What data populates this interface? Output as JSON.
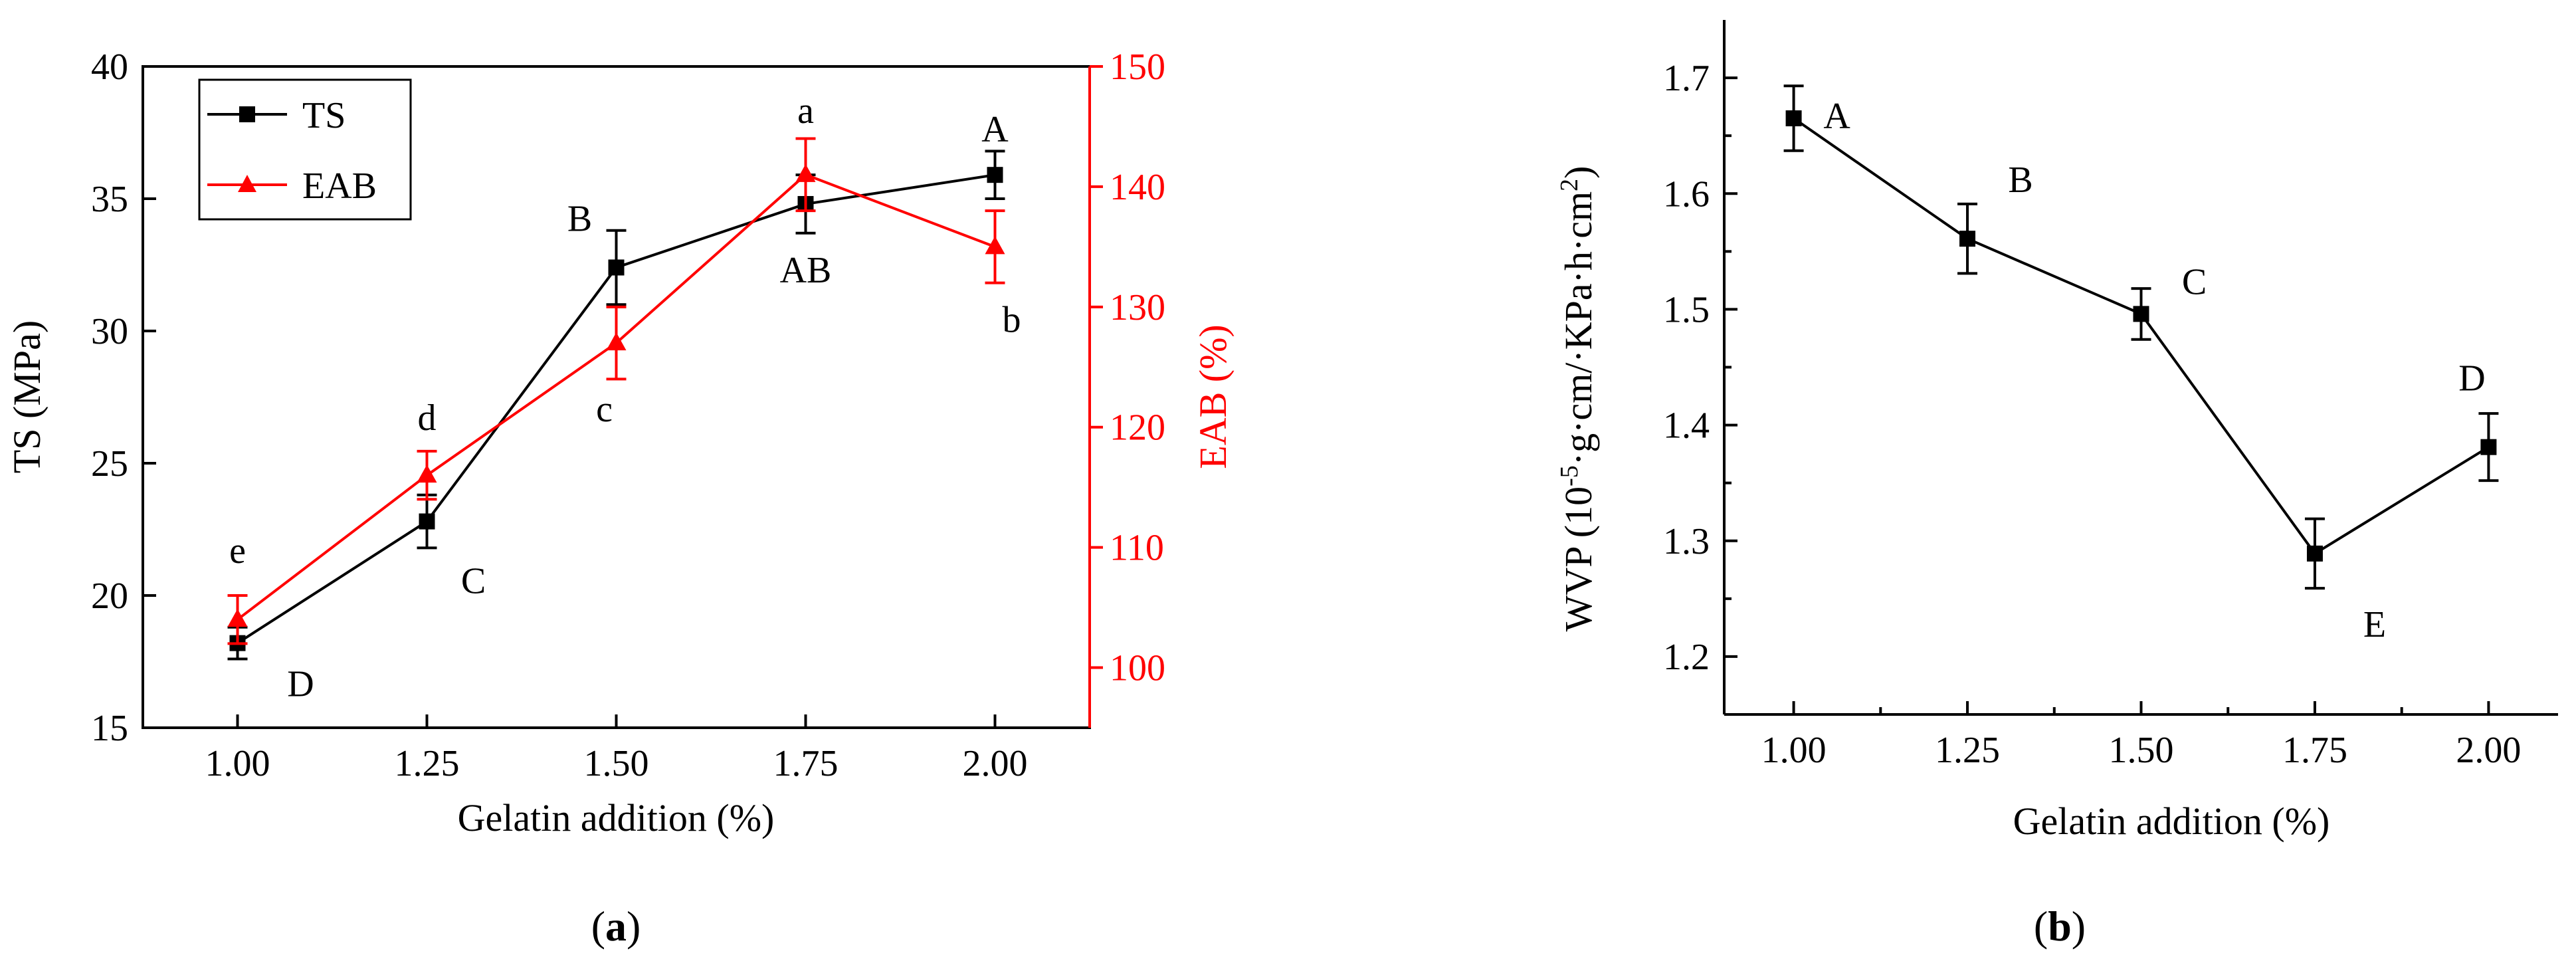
{
  "colors": {
    "ts": "#000000",
    "eab": "#ff0000"
  },
  "chart_data": [
    {
      "id": "a",
      "type": "line",
      "panel_label": "(a)",
      "xlabel": "Gelatin addition (%)",
      "ylabel": "TS (MPa)",
      "ylabel_right": "EAB (%)",
      "x": [
        1.0,
        1.25,
        1.5,
        1.75,
        2.0
      ],
      "x_tick_labels": [
        "1.00",
        "1.25",
        "1.50",
        "1.75",
        "2.00"
      ],
      "xlim": [
        0.875,
        2.125
      ],
      "ylim": [
        15,
        40
      ],
      "ylim_right": [
        95,
        150
      ],
      "y_ticks": [
        15,
        20,
        25,
        30,
        35,
        40
      ],
      "y_ticks_right": [
        100,
        110,
        120,
        130,
        140,
        150
      ],
      "legend": {
        "position": "top-left",
        "entries": [
          "TS",
          "EAB"
        ]
      },
      "series": [
        {
          "name": "TS",
          "axis": "left",
          "marker": "square",
          "color": "#000000",
          "values": [
            18.2,
            22.8,
            32.4,
            34.8,
            35.9
          ],
          "errors": [
            0.6,
            1.0,
            1.4,
            1.1,
            0.9
          ],
          "letters": [
            "D",
            "C",
            "B",
            "AB",
            "A"
          ]
        },
        {
          "name": "EAB",
          "axis": "right",
          "marker": "triangle",
          "color": "#ff0000",
          "values": [
            104,
            116,
            127,
            141,
            135
          ],
          "errors": [
            2,
            2,
            3,
            3,
            3
          ],
          "letters": [
            "e",
            "d",
            "c",
            "a",
            "b"
          ]
        }
      ]
    },
    {
      "id": "b",
      "type": "line",
      "panel_label": "(b)",
      "xlabel": "Gelatin addition (%)",
      "ylabel": "WVP (10⁻⁵·g·cm/·KPa·h·cm²)",
      "x": [
        1.0,
        1.25,
        1.5,
        1.75,
        2.0
      ],
      "x_tick_labels": [
        "1.00",
        "1.25",
        "1.50",
        "1.75",
        "2.00"
      ],
      "xlim": [
        0.9,
        2.1
      ],
      "ylim": [
        1.15,
        1.75
      ],
      "y_ticks": [
        1.2,
        1.3,
        1.4,
        1.5,
        1.6,
        1.7
      ],
      "y_tick_labels": [
        "1.2",
        "1.3",
        "1.4",
        "1.5",
        "1.6",
        "1.7"
      ],
      "series": [
        {
          "marker": "square",
          "color": "#000000",
          "values": [
            1.665,
            1.561,
            1.496,
            1.289,
            1.381
          ],
          "errors": [
            0.028,
            0.03,
            0.022,
            0.03,
            0.029
          ],
          "letters": [
            "A",
            "B",
            "C",
            "E",
            "D"
          ]
        }
      ]
    }
  ]
}
